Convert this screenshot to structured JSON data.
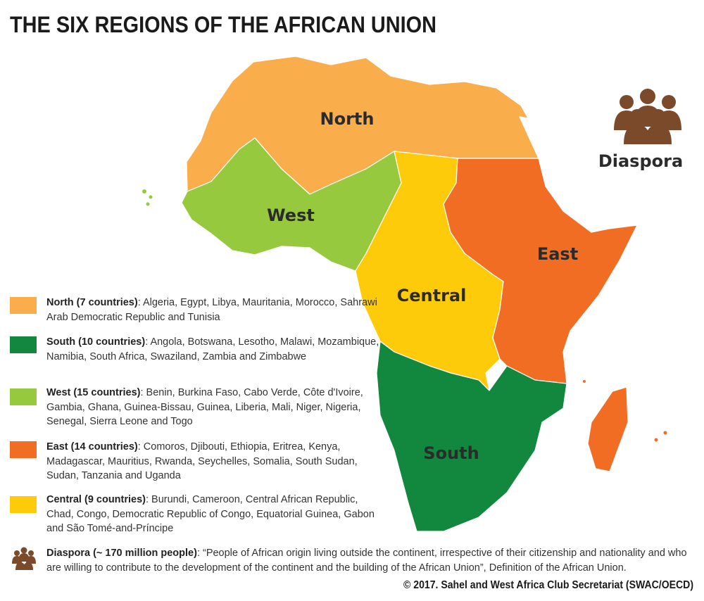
{
  "title": "THE SIX REGIONS OF THE AFRICAN UNION",
  "regions": [
    {
      "name": "North",
      "color": "#f9ae4b",
      "legend_label": "North (7 countries)",
      "legend_text": ": Algeria, Egypt, Libya, Mauritania, Morocco, Sahrawi Arab Democratic Republic and Tunisia"
    },
    {
      "name": "South",
      "color": "#12873e",
      "legend_label": "South (10 countries)",
      "legend_text": ": Angola, Botswana, Lesotho, Malawi, Mozambique, Namibia, South Africa, Swaziland, Zambia and Zimbabwe"
    },
    {
      "name": "West",
      "color": "#96c93d",
      "legend_label": "West (15 countries)",
      "legend_text": ": Benin, Burkina Faso, Cabo Verde, Côte d'Ivoire, Gambia, Ghana, Guinea-Bissau, Guinea, Liberia, Mali, Niger, Nigeria, Senegal, Sierra Leone and Togo"
    },
    {
      "name": "East",
      "color": "#f16d24",
      "legend_label": "East (14 countries)",
      "legend_text": ": Comoros, Djibouti, Ethiopia, Eritrea, Kenya, Madagascar, Mauritius, Rwanda, Seychelles, Somalia, South Sudan, Sudan, Tanzania and Uganda"
    },
    {
      "name": "Central",
      "color": "#fecb0a",
      "legend_label": "Central (9 countries)",
      "legend_text": ": Burundi, Cameroon, Central African Republic, Chad, Congo, Democratic Republic of Congo, Equatorial Guinea, Gabon and São Tomé-and-Príncipe"
    }
  ],
  "diaspora": {
    "name": "Diaspora",
    "color": "#7b4a2a",
    "legend_label": "Diaspora (~ 170 million people)",
    "legend_text": ":  “People of African origin living outside the continent, irrespective of their citizenship and nationality and who are willing to contribute to the development of the continent and the building of the African Union”, Definition of the African Union."
  },
  "credit": "© 2017. Sahel and West Africa Club Secretariat (SWAC/OECD)"
}
